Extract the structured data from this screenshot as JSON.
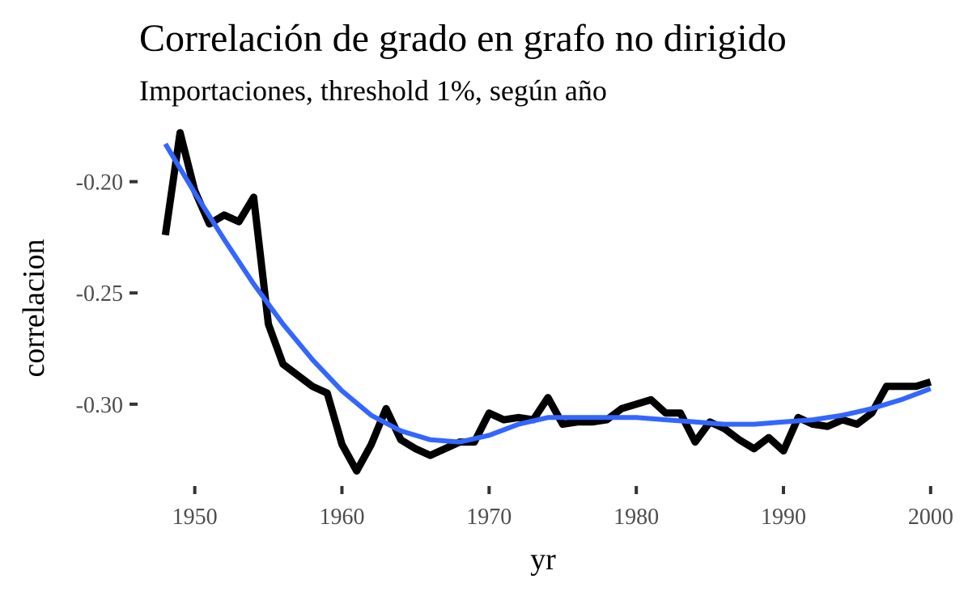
{
  "chart_data": {
    "type": "line",
    "title": "Correlación de grado en grafo no dirigido",
    "subtitle": "Importaciones, threshold 1%, según año",
    "xlabel": "yr",
    "ylabel": "correlacion",
    "xlim": [
      1946.5,
      2001
    ],
    "ylim": [
      -0.3335,
      -0.1765
    ],
    "x_ticks": [
      1950,
      1960,
      1970,
      1980,
      1990,
      2000
    ],
    "x_tick_labels": [
      "1950",
      "1960",
      "1970",
      "1980",
      "1990",
      "2000"
    ],
    "y_ticks": [
      -0.2,
      -0.25,
      -0.3
    ],
    "y_tick_labels": [
      "-0.20",
      "-0.25",
      "-0.30"
    ],
    "grid": false,
    "legend": "none",
    "series": [
      {
        "kind": "observed",
        "color": "#000000",
        "x": [
          1948,
          1949,
          1950,
          1951,
          1952,
          1953,
          1954,
          1955,
          1956,
          1957,
          1958,
          1959,
          1960,
          1961,
          1962,
          1963,
          1964,
          1965,
          1966,
          1967,
          1968,
          1969,
          1970,
          1971,
          1972,
          1973,
          1974,
          1975,
          1976,
          1977,
          1978,
          1979,
          1980,
          1981,
          1982,
          1983,
          1984,
          1985,
          1986,
          1987,
          1988,
          1989,
          1990,
          1991,
          1992,
          1993,
          1994,
          1995,
          1996,
          1997,
          1998,
          1999,
          2000
        ],
        "y": [
          -0.224,
          -0.178,
          -0.204,
          -0.219,
          -0.215,
          -0.218,
          -0.207,
          -0.264,
          -0.282,
          -0.287,
          -0.292,
          -0.295,
          -0.318,
          -0.33,
          -0.318,
          -0.302,
          -0.316,
          -0.32,
          -0.323,
          -0.32,
          -0.317,
          -0.317,
          -0.304,
          -0.307,
          -0.306,
          -0.307,
          -0.297,
          -0.309,
          -0.308,
          -0.308,
          -0.307,
          -0.302,
          -0.3,
          -0.298,
          -0.304,
          -0.304,
          -0.317,
          -0.308,
          -0.311,
          -0.316,
          -0.32,
          -0.315,
          -0.321,
          -0.306,
          -0.309,
          -0.31,
          -0.307,
          -0.309,
          -0.304,
          -0.292,
          -0.292,
          -0.292,
          -0.29
        ]
      },
      {
        "kind": "smooth",
        "color": "#3366FF",
        "x": [
          1948,
          1950,
          1952,
          1954,
          1956,
          1958,
          1960,
          1962,
          1964,
          1966,
          1968,
          1970,
          1972,
          1974,
          1976,
          1978,
          1980,
          1982,
          1984,
          1986,
          1988,
          1990,
          1992,
          1994,
          1996,
          1998,
          2000
        ],
        "y": [
          -0.183,
          -0.205,
          -0.226,
          -0.246,
          -0.264,
          -0.28,
          -0.294,
          -0.305,
          -0.312,
          -0.316,
          -0.317,
          -0.314,
          -0.309,
          -0.306,
          -0.306,
          -0.306,
          -0.306,
          -0.307,
          -0.308,
          -0.309,
          -0.309,
          -0.308,
          -0.307,
          -0.305,
          -0.302,
          -0.298,
          -0.293
        ]
      }
    ]
  }
}
